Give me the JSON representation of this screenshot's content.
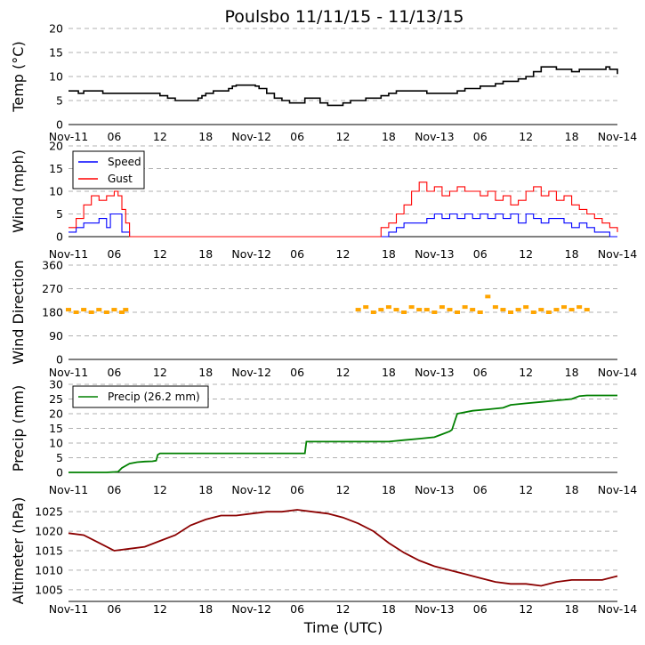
{
  "title": "Poulsbo 11/11/15 - 11/13/15",
  "xlabel": "Time (UTC)",
  "x_ticks": [
    "Nov-11",
    "06",
    "12",
    "18",
    "Nov-12",
    "06",
    "12",
    "18",
    "Nov-13",
    "06",
    "12",
    "18",
    "Nov-14"
  ],
  "colors": {
    "temp": "#000000",
    "speed": "#0000ff",
    "gust": "#ff0000",
    "direction": "#ffa500",
    "precip": "#008000",
    "altimeter": "#8b0000",
    "grid": "#b0b0b0"
  },
  "chart_data": [
    {
      "type": "line",
      "id": "temp",
      "ylabel": "Temp (°C)",
      "ylim": [
        0,
        20
      ],
      "yticks": [
        0,
        5,
        10,
        15,
        20
      ],
      "x_unit": "hours since Nov-11 00 UTC",
      "xlim": [
        0,
        72
      ],
      "series": [
        {
          "x": [
            0,
            1,
            1.3,
            2,
            2.5,
            4.5,
            6,
            7,
            9,
            11.5,
            12,
            13,
            14,
            16,
            17,
            17.5,
            18,
            19,
            20,
            21,
            21.5,
            22,
            23,
            24,
            24.5,
            25,
            26,
            27,
            28,
            28.5,
            29,
            30,
            31,
            32,
            33,
            34,
            35,
            36,
            37,
            38,
            39,
            40,
            41,
            42,
            43,
            44,
            45,
            46,
            47,
            48,
            49,
            50,
            51,
            52,
            53,
            54,
            55,
            56,
            57,
            58,
            59,
            60,
            61,
            62,
            62.5,
            63,
            64,
            65,
            66,
            67,
            68,
            69,
            70,
            70.5,
            71,
            72
          ],
          "y": [
            7,
            7,
            6.5,
            7,
            7,
            6.5,
            6.5,
            6.5,
            6.5,
            6.5,
            6,
            5.5,
            5,
            5,
            5.5,
            6,
            6.5,
            7,
            7,
            7.5,
            8,
            8.2,
            8.2,
            8.2,
            8,
            7.5,
            6.5,
            5.5,
            5,
            5,
            4.5,
            4.5,
            5.5,
            5.5,
            4.5,
            4,
            4,
            4.5,
            5,
            5,
            5.5,
            5.5,
            6,
            6.5,
            7,
            7,
            7,
            7,
            6.5,
            6.5,
            6.5,
            6.5,
            7,
            7.5,
            7.5,
            8,
            8,
            8.5,
            9,
            9,
            9.5,
            10,
            11,
            12,
            12,
            12,
            11.5,
            11.5,
            11,
            11.5,
            11.5,
            11.5,
            11.5,
            12,
            11.5,
            10.5
          ]
        }
      ]
    },
    {
      "type": "line",
      "id": "wind",
      "ylabel": "Wind (mph)",
      "ylim": [
        0,
        20
      ],
      "yticks": [
        0,
        5,
        10,
        15,
        20
      ],
      "series": [
        {
          "name": "Speed",
          "x": [
            0,
            1,
            2,
            3,
            4,
            5,
            5.5,
            6,
            7,
            8,
            9,
            10,
            15,
            20,
            25,
            30,
            35,
            40,
            41,
            42,
            43,
            44,
            45,
            46,
            47,
            48,
            49,
            50,
            51,
            52,
            53,
            54,
            55,
            56,
            57,
            58,
            59,
            60,
            61,
            62,
            63,
            64,
            65,
            66,
            67,
            68,
            69,
            70,
            71,
            72
          ],
          "y": [
            1,
            2,
            3,
            3,
            4,
            2,
            5,
            5,
            1,
            0,
            0,
            0,
            0,
            0,
            0,
            0,
            0,
            0,
            0,
            1,
            2,
            3,
            3,
            3,
            4,
            5,
            4,
            5,
            4,
            5,
            4,
            5,
            4,
            5,
            4,
            5,
            3,
            5,
            4,
            3,
            4,
            4,
            3,
            2,
            3,
            2,
            1,
            1,
            0,
            0
          ]
        },
        {
          "name": "Gust",
          "x": [
            0,
            1,
            2,
            3,
            4,
            5,
            6,
            6.5,
            7,
            7.5,
            8,
            40,
            41,
            42,
            43,
            44,
            45,
            46,
            47,
            48,
            49,
            50,
            51,
            52,
            53,
            54,
            55,
            56,
            57,
            58,
            59,
            60,
            61,
            62,
            63,
            64,
            65,
            66,
            67,
            68,
            69,
            70,
            71,
            72
          ],
          "y": [
            2,
            4,
            7,
            9,
            8,
            9,
            10,
            9,
            6,
            3,
            0,
            0,
            2,
            3,
            5,
            7,
            10,
            12,
            10,
            11,
            9,
            10,
            11,
            10,
            10,
            9,
            10,
            8,
            9,
            7,
            8,
            10,
            11,
            9,
            10,
            8,
            9,
            7,
            6,
            5,
            4,
            3,
            2,
            1
          ]
        }
      ]
    },
    {
      "type": "scatter",
      "id": "direction",
      "ylabel": "Wind Direction",
      "ylim": [
        0,
        360
      ],
      "yticks": [
        0,
        90,
        180,
        270,
        360
      ],
      "series": [
        {
          "x": [
            0,
            1,
            2,
            3,
            4,
            5,
            6,
            7,
            7.5,
            38,
            39,
            40,
            41,
            42,
            43,
            44,
            45,
            46,
            47,
            48,
            49,
            50,
            51,
            52,
            53,
            54,
            55,
            56,
            57,
            58,
            59,
            60,
            61,
            62,
            63,
            64,
            65,
            66,
            67,
            68
          ],
          "y": [
            190,
            180,
            190,
            180,
            190,
            180,
            190,
            180,
            190,
            190,
            200,
            180,
            190,
            200,
            190,
            180,
            200,
            190,
            190,
            180,
            200,
            190,
            180,
            200,
            190,
            180,
            240,
            200,
            190,
            180,
            190,
            200,
            180,
            190,
            180,
            190,
            200,
            190,
            200,
            190
          ]
        }
      ]
    },
    {
      "type": "line",
      "id": "precip",
      "ylabel": "Precip (mm)",
      "ylim": [
        0,
        30
      ],
      "yticks": [
        0,
        5,
        10,
        15,
        20,
        25,
        30
      ],
      "series": [
        {
          "name": "Precip (26.2 mm)",
          "x": [
            0,
            5,
            6.5,
            7,
            8,
            9,
            10,
            11,
            11.5,
            11.7,
            12,
            20,
            24,
            30,
            31,
            31.2,
            32,
            36,
            38,
            42,
            44,
            46,
            48,
            49,
            50,
            50.3,
            51,
            53,
            55,
            57,
            58,
            60,
            62,
            64,
            66,
            67,
            68,
            72
          ],
          "y": [
            0,
            0,
            0.2,
            1.5,
            3,
            3.5,
            3.7,
            3.8,
            4,
            6,
            6.5,
            6.5,
            6.5,
            6.5,
            6.5,
            10.5,
            10.5,
            10.5,
            10.5,
            10.5,
            11,
            11.5,
            12,
            13,
            14,
            14.5,
            20,
            21,
            21.5,
            22,
            23,
            23.5,
            24,
            24.5,
            25,
            26,
            26.2,
            26.2
          ]
        }
      ]
    },
    {
      "type": "line",
      "id": "altimeter",
      "ylabel": "Altimeter (hPa)",
      "ylim": [
        1002,
        1028
      ],
      "yticks": [
        1005,
        1010,
        1015,
        1020,
        1025
      ],
      "series": [
        {
          "x": [
            0,
            2,
            4,
            6,
            8,
            10,
            12,
            14,
            16,
            18,
            20,
            22,
            24,
            26,
            28,
            30,
            32,
            34,
            36,
            38,
            40,
            42,
            44,
            46,
            48,
            50,
            52,
            54,
            56,
            58,
            60,
            62,
            64,
            66,
            68,
            70,
            72
          ],
          "y": [
            1019.5,
            1019,
            1017,
            1015,
            1015.5,
            1016,
            1017.5,
            1019,
            1021.5,
            1023,
            1024,
            1024,
            1024.5,
            1025,
            1025,
            1025.5,
            1025,
            1024.5,
            1023.5,
            1022,
            1020,
            1017,
            1014.5,
            1012.5,
            1011,
            1010,
            1009,
            1008,
            1007,
            1006.5,
            1006.5,
            1006,
            1007,
            1007.5,
            1007.5,
            1007.5,
            1008.5
          ]
        }
      ]
    }
  ]
}
